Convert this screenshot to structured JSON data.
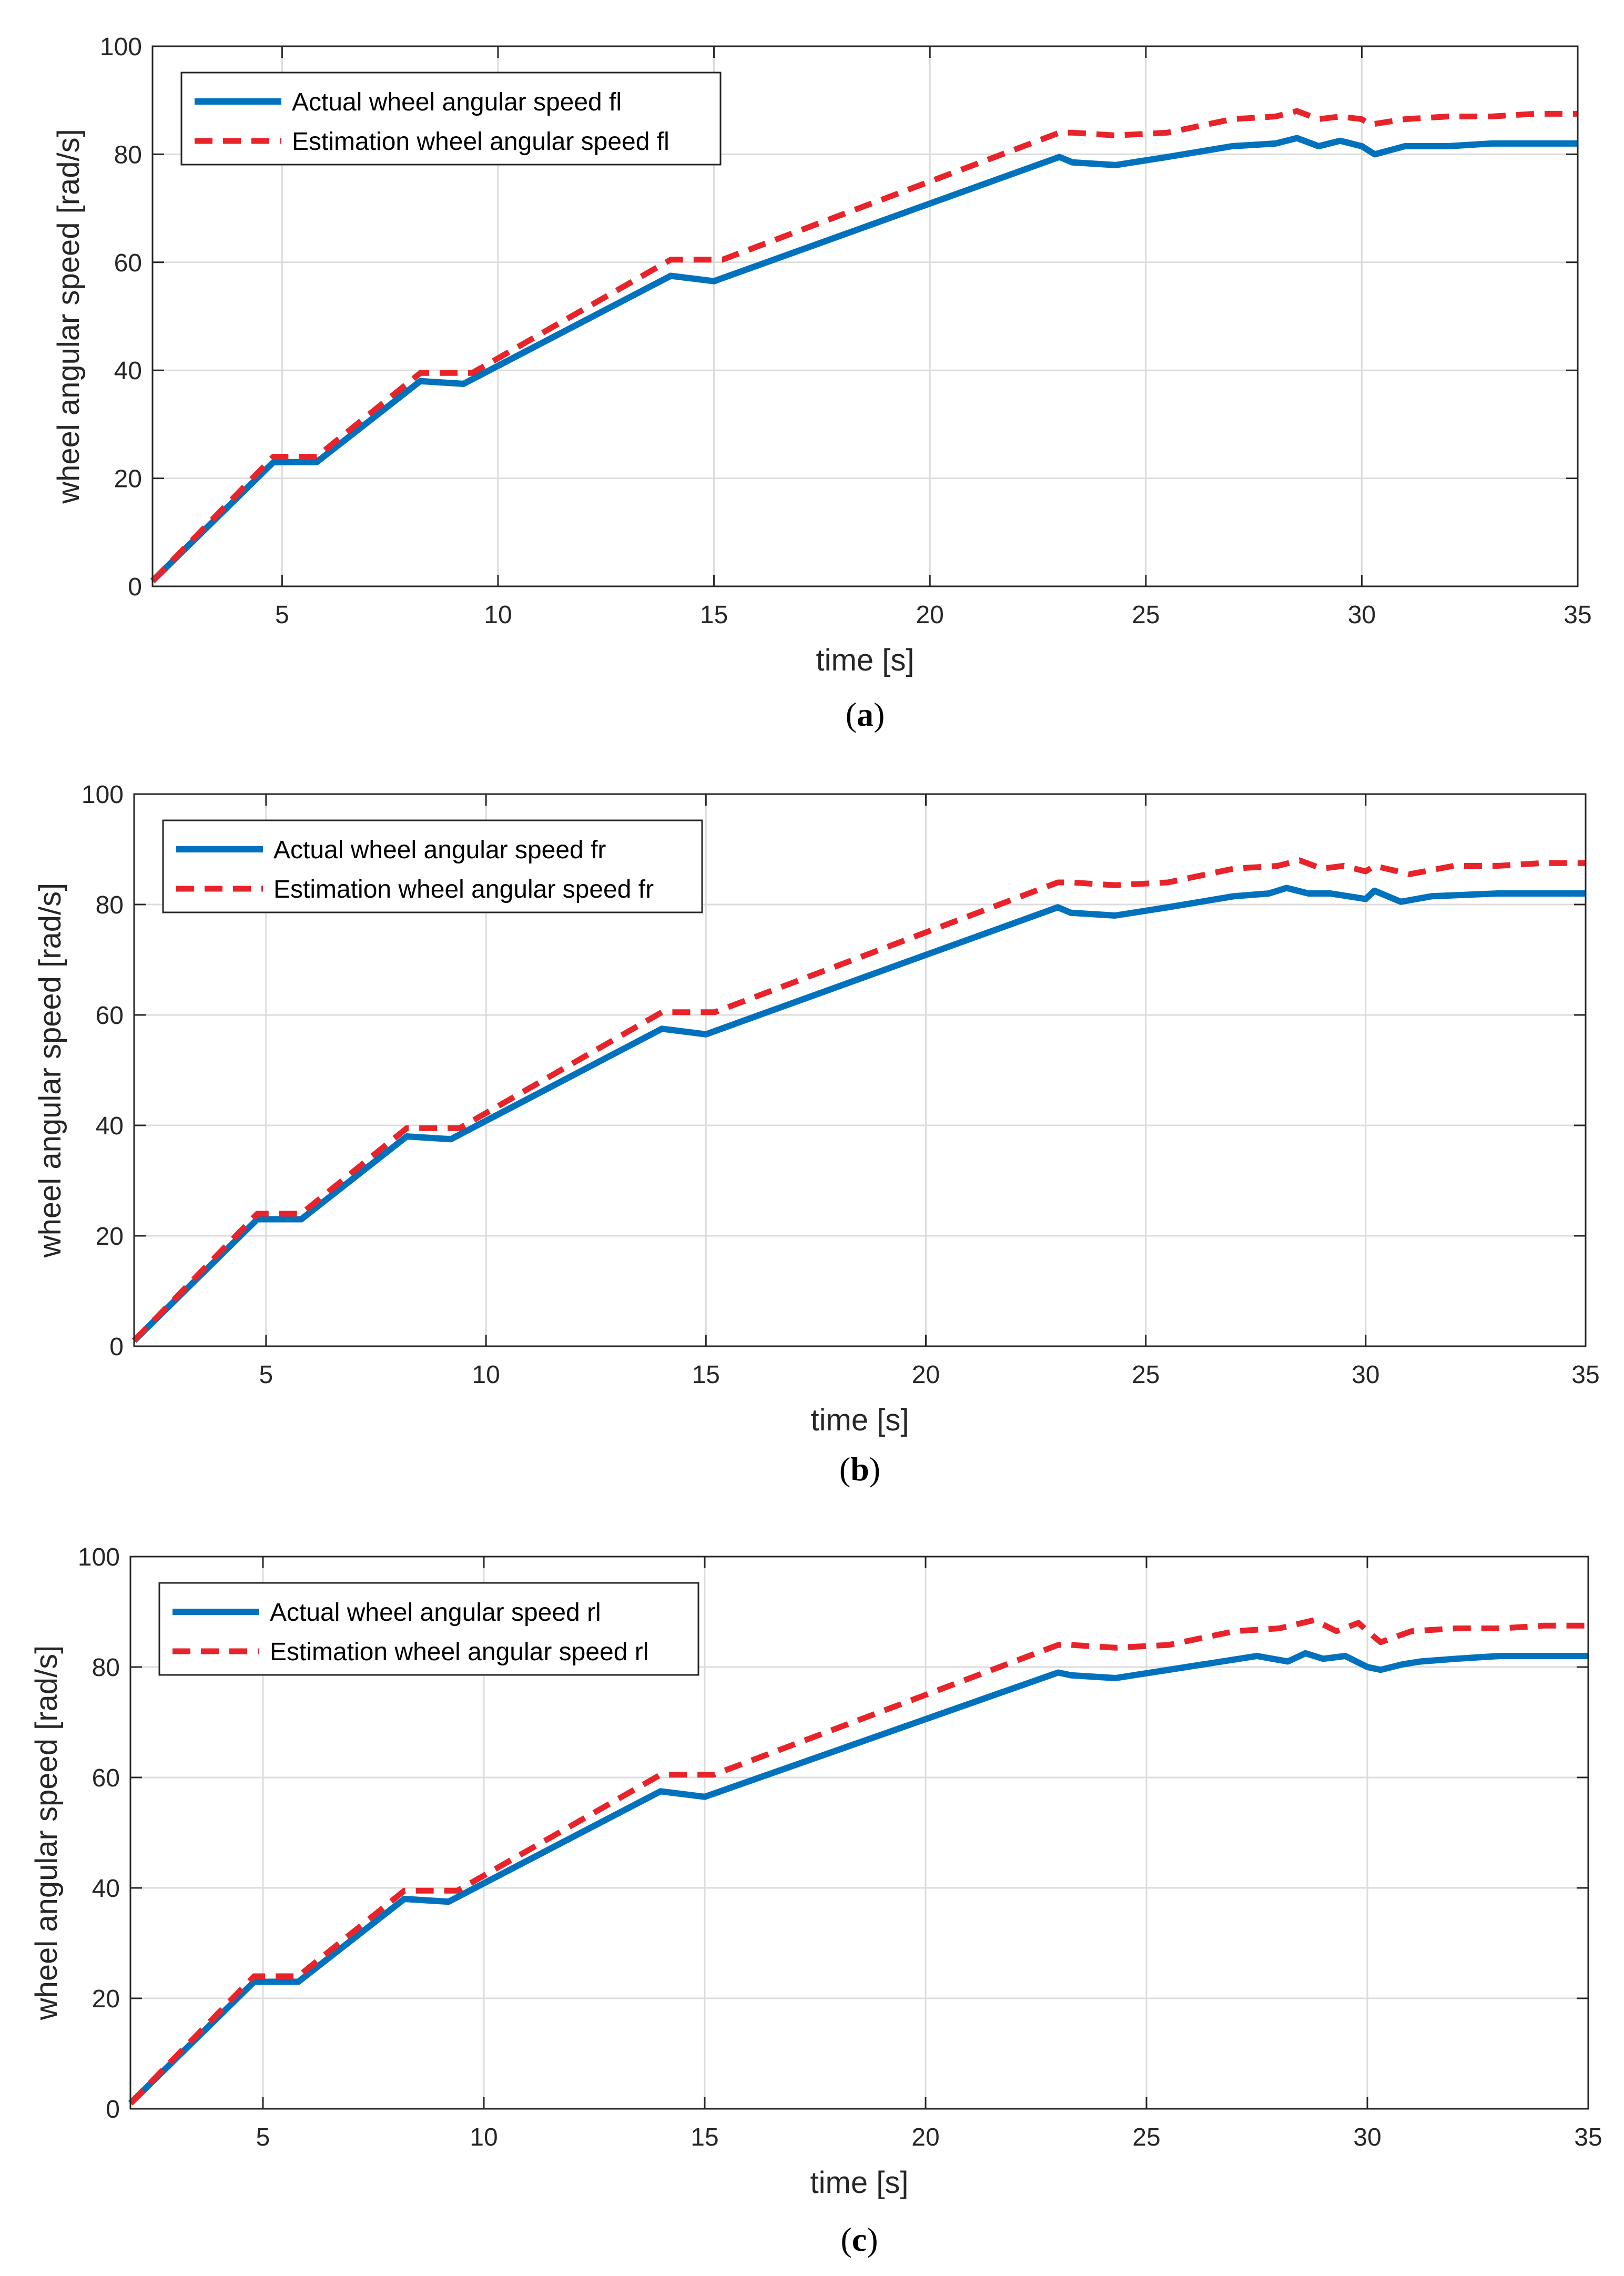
{
  "colors": {
    "actual": "#0072BD",
    "estimation": "#E8232A",
    "grid": "#DCDCDC",
    "axis": "#262626"
  },
  "chart_data": [
    {
      "type": "line",
      "caption": "a",
      "xlabel": "time [s]",
      "ylabel": "wheel angular speed [rad/s]",
      "xlim": [
        2,
        35
      ],
      "ylim": [
        0,
        100
      ],
      "xticks": [
        5,
        10,
        15,
        20,
        25,
        30,
        35
      ],
      "yticks": [
        0,
        20,
        40,
        60,
        80,
        100
      ],
      "grid": true,
      "legend_position": "top-left",
      "series": [
        {
          "name": "Actual wheel angular speed fl",
          "style": "solid",
          "x": [
            2,
            4.8,
            5.8,
            8.2,
            9.2,
            14,
            15,
            23,
            23.3,
            24.3,
            25.5,
            27,
            28,
            28.5,
            29,
            29.5,
            30,
            30.3,
            31,
            32,
            33,
            34,
            35
          ],
          "y": [
            1,
            23,
            23,
            38,
            37.5,
            57.5,
            56.5,
            79.5,
            78.5,
            78,
            79.5,
            81.5,
            82,
            83,
            81.5,
            82.5,
            81.5,
            80,
            81.5,
            81.5,
            82,
            82,
            82
          ]
        },
        {
          "name": "Estimation wheel angular speed fl",
          "style": "dashed",
          "x": [
            2,
            4.8,
            5.8,
            8.2,
            9.4,
            14,
            15.2,
            23,
            23.3,
            24.3,
            25.5,
            27,
            28,
            28.5,
            29,
            29.5,
            30,
            30.2,
            31,
            32,
            33,
            34,
            35
          ],
          "y": [
            1,
            24,
            24,
            39.5,
            39.5,
            60.5,
            60.5,
            84,
            84,
            83.5,
            84,
            86.5,
            87,
            88,
            86.5,
            87,
            86.5,
            85.5,
            86.5,
            87,
            87,
            87.5,
            87.5
          ]
        }
      ]
    },
    {
      "type": "line",
      "caption": "b",
      "xlabel": "time [s]",
      "ylabel": "wheel angular speed [rad/s]",
      "xlim": [
        2,
        35
      ],
      "ylim": [
        0,
        100
      ],
      "xticks": [
        5,
        10,
        15,
        20,
        25,
        30,
        35
      ],
      "yticks": [
        0,
        20,
        40,
        60,
        80,
        100
      ],
      "grid": true,
      "legend_position": "top-left",
      "series": [
        {
          "name": "Actual wheel angular speed fr",
          "style": "solid",
          "x": [
            2,
            4.8,
            5.8,
            8.2,
            9.2,
            14,
            15,
            23,
            23.3,
            24.3,
            25.5,
            27,
            27.8,
            28.2,
            28.7,
            29.2,
            30,
            30.2,
            30.8,
            31.5,
            33,
            34,
            35
          ],
          "y": [
            1,
            23,
            23,
            38,
            37.5,
            57.5,
            56.5,
            79.5,
            78.5,
            78,
            79.5,
            81.5,
            82,
            83,
            82,
            82,
            81,
            82.5,
            80.5,
            81.5,
            82,
            82,
            82
          ]
        },
        {
          "name": "Estimation wheel angular speed fr",
          "style": "dashed",
          "x": [
            2,
            4.8,
            5.8,
            8.2,
            9.4,
            14,
            15.2,
            23,
            23.3,
            24.3,
            25.5,
            27,
            28,
            28.5,
            29,
            29.5,
            30,
            30.2,
            31,
            32,
            33,
            34,
            35
          ],
          "y": [
            1,
            24,
            24,
            39.5,
            39.5,
            60.5,
            60.5,
            84,
            84,
            83.5,
            84,
            86.5,
            87,
            88,
            86.5,
            87,
            86,
            87,
            85.5,
            87,
            87,
            87.5,
            87.5
          ]
        }
      ]
    },
    {
      "type": "line",
      "caption": "c",
      "xlabel": "time [s]",
      "ylabel": "wheel angular speed [rad/s]",
      "xlim": [
        2,
        35
      ],
      "ylim": [
        0,
        100
      ],
      "xticks": [
        5,
        10,
        15,
        20,
        25,
        30,
        35
      ],
      "yticks": [
        0,
        20,
        40,
        60,
        80,
        100
      ],
      "grid": true,
      "legend_position": "top-left",
      "series": [
        {
          "name": "Actual wheel angular speed rl",
          "style": "solid",
          "x": [
            2,
            4.8,
            5.8,
            8.2,
            9.2,
            14,
            15,
            23,
            23.3,
            24.3,
            25.5,
            27.5,
            28.2,
            28.6,
            29,
            29.5,
            30,
            30.3,
            30.8,
            31.2,
            32,
            33,
            34,
            35
          ],
          "y": [
            1,
            23,
            23,
            38,
            37.5,
            57.5,
            56.5,
            79,
            78.5,
            78,
            79.5,
            82,
            81,
            82.5,
            81.5,
            82,
            80,
            79.5,
            80.5,
            81,
            81.5,
            82,
            82,
            82
          ]
        },
        {
          "name": "Estimation wheel angular speed rl",
          "style": "dashed",
          "x": [
            2,
            4.8,
            5.8,
            8.2,
            9.4,
            14,
            15.2,
            23,
            23.3,
            24.3,
            25.5,
            27,
            28,
            28.8,
            29.3,
            29.8,
            30,
            30.3,
            31,
            32,
            33,
            34,
            35
          ],
          "y": [
            1,
            24,
            24,
            39.5,
            39.5,
            60.5,
            60.5,
            84,
            84,
            83.5,
            84,
            86.5,
            87,
            88.5,
            86.5,
            88,
            86.5,
            84.5,
            86.5,
            87,
            87,
            87.5,
            87.5
          ]
        }
      ]
    }
  ]
}
